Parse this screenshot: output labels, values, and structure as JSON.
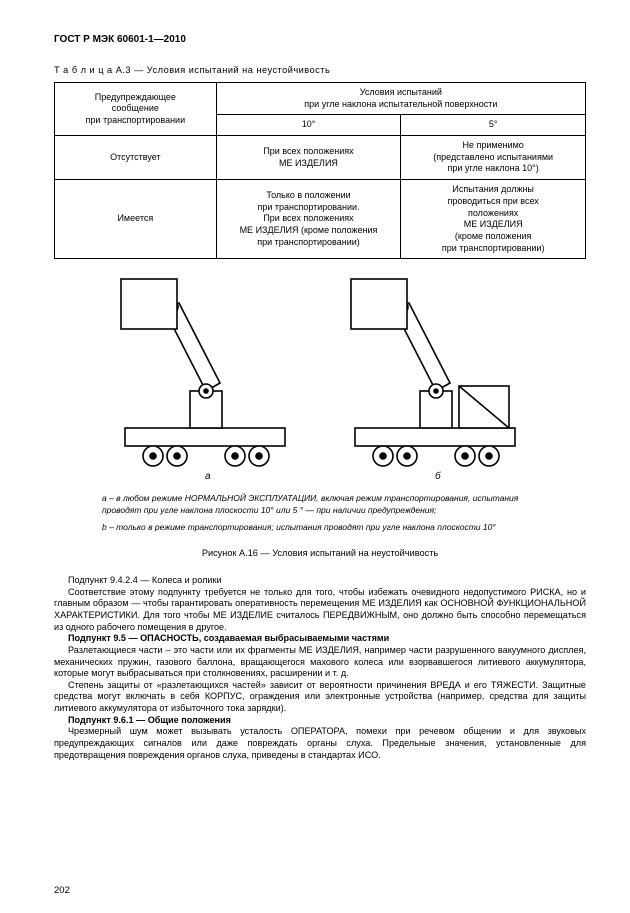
{
  "header": "ГОСТ Р МЭК 60601-1—2010",
  "table": {
    "caption": "Т а б л и ц а   А.3 — Условия  испытаний на неустойчивость",
    "head": {
      "col1": "Предупреждающее\nсообщение\nпри транспортировании",
      "col2": "Условия испытаний\nпри угле наклона испытательной поверхности",
      "sub1": "10°",
      "sub2": "5°"
    },
    "rows": [
      {
        "c1": "Отсутствует",
        "c2": "При всех положениях\nМЕ ИЗДЕЛИЯ",
        "c3": "Не применимо\n(представлено испытаниями\nпри угле наклона 10°)"
      },
      {
        "c1": "Имеется",
        "c2": "Только в положении\nпри транспортировании.\nПри всех положениях\nМЕ ИЗДЕЛИЯ (кроме положения\nпри транспортировании)",
        "c3": "Испытания должны\nпроводиться при всех\nположениях\nМЕ ИЗДЕЛИЯ\n(кроме положения\nпри транспортировании)"
      }
    ]
  },
  "figure": {
    "label_a": "а",
    "label_b": "б",
    "note_a": "а – в любом режиме НОРМАЛЬНОЙ ЭКСПЛУАТАЦИИ, включая режим транспор­тирования, испытания проводят при угле наклона плоскости 10°  или 5 ° — при наличии предупреждения;",
    "note_b": "b – только в режиме  транспортирования; испытания проводят при угле наклона плоскости 10°",
    "title": "Рисунок А.16 — Условия  испытаний на неустойчивость"
  },
  "body": {
    "p1": "Подпункт 9.4.2.4 — Колеса и ролики",
    "p2": "Соответствие  этому подпункту требуется не только для того, чтобы избежать очевидного недопустимого РИСКА, но и главным образом — чтобы гарантировать оперативность перемещения МЕ ИЗДЕЛИЯ как ОСНОВ­НОЙ ФУНКЦИОНАЛЬНОЙ ХАРАКТЕРИСТИКИ.  Для того чтобы  МЕ ИЗДЕЛИЕ считалось ПЕРЕДВИЖНЫМ, оно должно быть способно перемещаться из одного рабочего помещения в другое.",
    "p3": "Подпункт 9.5 — ОПАСНОСТЬ, создаваемая выбрасываемыми частями",
    "p4": "Разлетающиеся части – это части или их фрагменты МЕ ИЗДЕЛИЯ, например части разрушенного вакуумно­го дисплея, механических пружин, газового баллона, вращающегося махового колеса или взорвавшегося литиево­го аккумулятора, которые могут выбрасываться при столкновениях, расширении и т. д.",
    "p5": "Степень защиты от «разлетающихся частей» зависит от вероятности причинения ВРЕДА и его ТЯЖЕСТИ. Защитные средства могут включать в себя КОРПУС, ограждения или электронные устройства (например, сред­ства для защиты литиевого аккумулятора от избыточного  тока зарядки).",
    "p6": "Подпункт 9.6.1 — Общие положения",
    "p7": "Чрезмерный шум может вызывать усталость ОПЕРАТОРА, помехи при речевом общении и для звуковых предупреждающих сигналов или даже повреждать органы слуха. Предельные значения, установленные для предотвращения повреждения органов слуха, приведены в стандартах ИСО."
  },
  "pagenum": "202"
}
